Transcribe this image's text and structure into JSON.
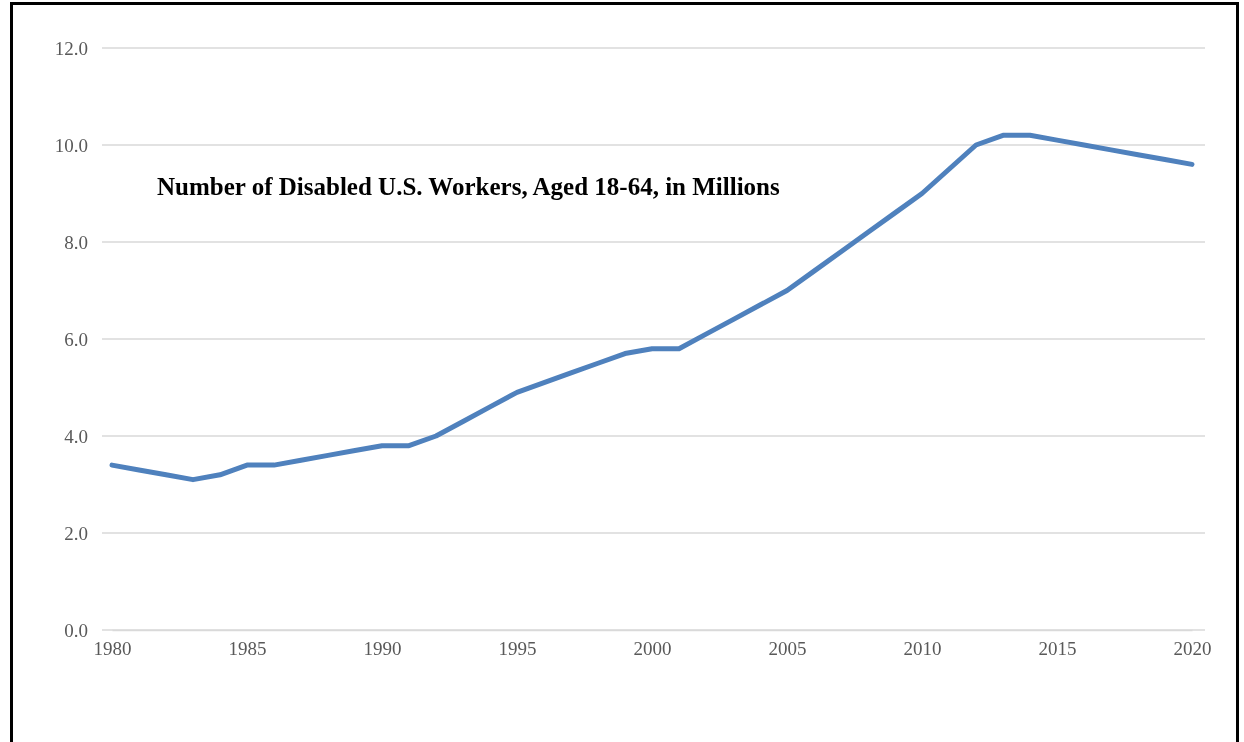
{
  "chart_data": {
    "type": "line",
    "title": "Number of Disabled U.S. Workers, Aged 18-64, in Millions",
    "x": [
      1980,
      1981,
      1982,
      1983,
      1984,
      1985,
      1986,
      1987,
      1988,
      1989,
      1990,
      1991,
      1992,
      1993,
      1994,
      1995,
      1996,
      1997,
      1998,
      1999,
      2000,
      2001,
      2002,
      2003,
      2004,
      2005,
      2006,
      2007,
      2008,
      2009,
      2010,
      2011,
      2012,
      2013,
      2014,
      2015,
      2016,
      2017,
      2018,
      2019,
      2020
    ],
    "series": [
      {
        "color": "#4f81bd",
        "values": [
          3.4,
          3.3,
          3.2,
          3.1,
          3.2,
          3.4,
          3.4,
          3.5,
          3.6,
          3.7,
          3.8,
          3.8,
          4.0,
          4.3,
          4.6,
          4.9,
          5.1,
          5.3,
          5.5,
          5.7,
          5.8,
          5.8,
          6.1,
          6.4,
          6.7,
          7.0,
          7.4,
          7.8,
          8.2,
          8.6,
          9.0,
          9.5,
          10.0,
          10.2,
          10.2,
          10.1,
          10.0,
          9.9,
          9.8,
          9.7,
          9.6
        ]
      }
    ],
    "xlim": [
      1980,
      2020
    ],
    "xticks": [
      1980,
      1985,
      1990,
      1995,
      2000,
      2005,
      2010,
      2015,
      2020
    ],
    "ylim": [
      0,
      12
    ],
    "yticks": [
      {
        "value": 0,
        "label": "0.0"
      },
      {
        "value": 2,
        "label": "2.0"
      },
      {
        "value": 4,
        "label": "4.0"
      },
      {
        "value": 6,
        "label": "6.0"
      },
      {
        "value": 8,
        "label": "8.0"
      },
      {
        "value": 10,
        "label": "10.0"
      },
      {
        "value": 12,
        "label": "12.0"
      }
    ],
    "grid": "y",
    "marker": "none",
    "line_style": "solid"
  }
}
